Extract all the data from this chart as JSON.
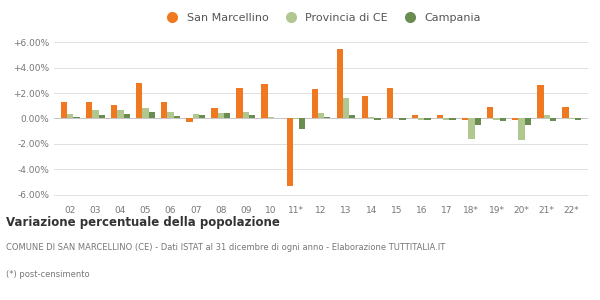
{
  "categories": [
    "02",
    "03",
    "04",
    "05",
    "06",
    "07",
    "08",
    "09",
    "10",
    "11*",
    "12",
    "13",
    "14",
    "15",
    "16",
    "17",
    "18*",
    "19*",
    "20*",
    "21*",
    "22*"
  ],
  "san_marcellino": [
    1.3,
    1.3,
    1.1,
    2.8,
    1.3,
    -0.3,
    0.8,
    2.4,
    2.7,
    -5.3,
    2.3,
    5.5,
    1.8,
    2.4,
    0.3,
    0.3,
    -0.15,
    0.9,
    -0.1,
    2.6,
    0.9
  ],
  "provincia_ce": [
    0.35,
    0.7,
    0.65,
    0.85,
    0.55,
    0.35,
    0.45,
    0.55,
    0.15,
    -0.05,
    0.45,
    1.65,
    0.1,
    0.0,
    -0.1,
    -0.1,
    -1.65,
    -0.15,
    -1.7,
    0.25,
    -0.05
  ],
  "campania": [
    0.1,
    0.25,
    0.35,
    0.5,
    0.2,
    0.3,
    0.4,
    0.25,
    0.05,
    -0.85,
    0.1,
    0.3,
    -0.1,
    -0.1,
    -0.1,
    -0.15,
    -0.5,
    -0.2,
    -0.55,
    -0.2,
    -0.15
  ],
  "color_san_marcellino": "#f07820",
  "color_provincia": "#b0c890",
  "color_campania": "#6a8c50",
  "ylim": [
    -6.5,
    6.5
  ],
  "yticks": [
    -6.0,
    -4.0,
    -2.0,
    0.0,
    2.0,
    4.0,
    6.0
  ],
  "title": "Variazione percentuale della popolazione",
  "subtitle": "COMUNE DI SAN MARCELLINO (CE) - Dati ISTAT al 31 dicembre di ogni anno - Elaborazione TUTTITALIA.IT",
  "footnote": "(*) post-censimento",
  "bg_color": "#ffffff",
  "grid_color": "#e0e0e0"
}
